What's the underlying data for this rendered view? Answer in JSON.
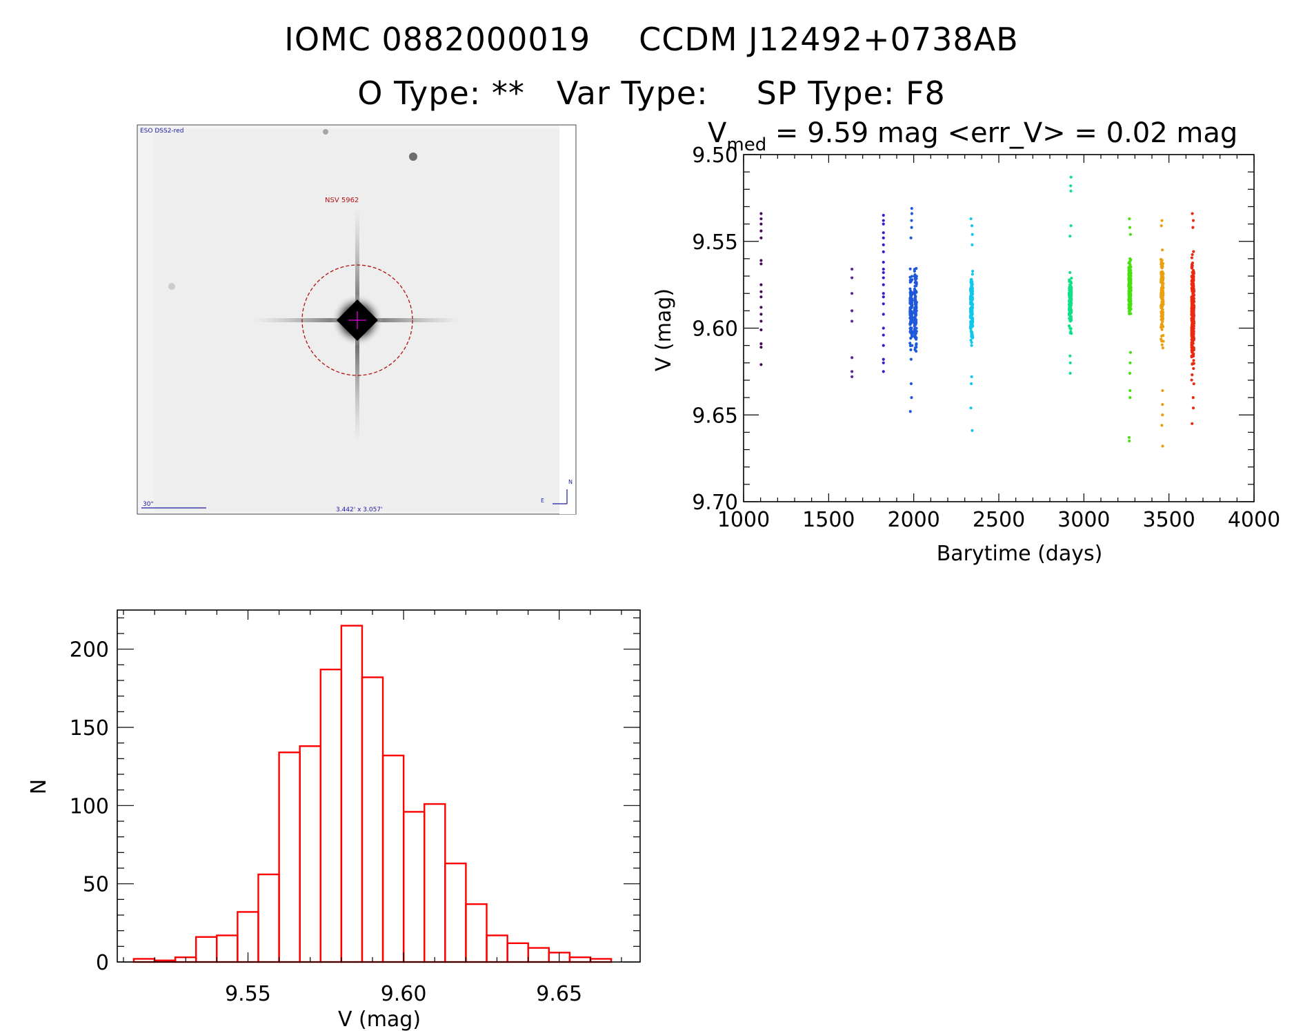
{
  "header": {
    "object_id": "IOMC 0882000019",
    "alt_id": "CCDM J12492+0738AB",
    "o_type": "O Type: **",
    "var_type": "Var Type:",
    "sp_type": "SP Type: F8"
  },
  "finder_image": {
    "survey_label": "ESO DSS2-red",
    "target_label": "NSV 5962",
    "scale_label": "30\"",
    "fov_label": "3.442' x 3.057'",
    "compass_n": "N",
    "compass_e": "E",
    "colors": {
      "label": "#1a1aa0",
      "target": "#b01010",
      "marker": "#c000c0"
    }
  },
  "chart_data": [
    {
      "type": "scatter",
      "title_prefix": "V",
      "title_subscript": "med",
      "title_rest": " = 9.59 mag <err_V> = 0.02 mag",
      "xlabel": "Barytime (days)",
      "ylabel": "V (mag)",
      "xlim": [
        1000,
        4000
      ],
      "ylim": [
        9.7,
        9.5
      ],
      "y_inverted": true,
      "xticks": [
        1000,
        1500,
        2000,
        2500,
        3000,
        3500,
        4000
      ],
      "yticks": [
        "9.50",
        "9.55",
        "9.60",
        "9.65",
        "9.70"
      ],
      "series": [
        {
          "color": "#4a0a5a",
          "x": 1103,
          "points": [
            9.534,
            9.537,
            9.54,
            9.544,
            9.548,
            9.561,
            9.563,
            9.575,
            9.579,
            9.582,
            9.588,
            9.592,
            9.596,
            9.601,
            9.609,
            9.611,
            9.621
          ]
        },
        {
          "color": "#5a2a9a",
          "x": 1637,
          "points": [
            9.566,
            9.571,
            9.58,
            9.59,
            9.596,
            9.617,
            9.625,
            9.628
          ]
        },
        {
          "color": "#3a1ad0",
          "x": 1822,
          "points": [
            9.535,
            9.538,
            9.54,
            9.545,
            9.548,
            9.552,
            9.556,
            9.562,
            9.566,
            9.568,
            9.571,
            9.575,
            9.58,
            9.582,
            9.586,
            9.592,
            9.6,
            9.604,
            9.61,
            9.618,
            9.62,
            9.625
          ]
        },
        {
          "color": "#1f58d8",
          "x": 1985,
          "x2": 2010,
          "lo": 9.556,
          "hi": 9.625,
          "n": 230,
          "outliers": [
            9.531,
            9.534,
            9.538,
            9.542,
            9.548,
            9.632,
            9.64,
            9.648
          ]
        },
        {
          "color": "#10c8ee",
          "x": 2340,
          "lo": 9.559,
          "hi": 9.618,
          "n": 160,
          "outliers": [
            9.537,
            9.541,
            9.546,
            9.552,
            9.628,
            9.632,
            9.646,
            9.659
          ]
        },
        {
          "color": "#10e088",
          "x": 2920,
          "lo": 9.56,
          "hi": 9.608,
          "n": 140,
          "outliers": [
            9.513,
            9.518,
            9.521,
            9.541,
            9.547,
            9.616,
            9.62,
            9.626
          ]
        },
        {
          "color": "#48e010",
          "x": 3270,
          "lo": 9.554,
          "hi": 9.6,
          "n": 190,
          "outliers": [
            9.537,
            9.542,
            9.546,
            9.614,
            9.62,
            9.626,
            9.636,
            9.64,
            9.663,
            9.665
          ]
        },
        {
          "color": "#e8a010",
          "x": 3460,
          "lo": 9.548,
          "hi": 9.617,
          "n": 150,
          "outliers": [
            9.538,
            9.541,
            9.636,
            9.644,
            9.65,
            9.656,
            9.668
          ]
        },
        {
          "color": "#e82a10",
          "x": 3640,
          "lo": 9.549,
          "hi": 9.635,
          "n": 360,
          "outliers": [
            9.534,
            9.538,
            9.542,
            9.64,
            9.646,
            9.655
          ]
        }
      ]
    },
    {
      "type": "bar",
      "xlabel": "V (mag)",
      "ylabel": "N",
      "xlim": [
        9.508,
        9.676
      ],
      "ylim": [
        0,
        225
      ],
      "xticks": [
        "9.55",
        "9.60",
        "9.65"
      ],
      "yticks": [
        "0",
        "50",
        "100",
        "150",
        "200"
      ],
      "bin_width": 0.00667,
      "bin_edges_start": 9.5133,
      "values": [
        2,
        1,
        3,
        16,
        17,
        32,
        56,
        134,
        138,
        187,
        215,
        182,
        132,
        96,
        101,
        63,
        37,
        17,
        12,
        9,
        6,
        3,
        2
      ],
      "bar_color": "#ff0000"
    }
  ]
}
